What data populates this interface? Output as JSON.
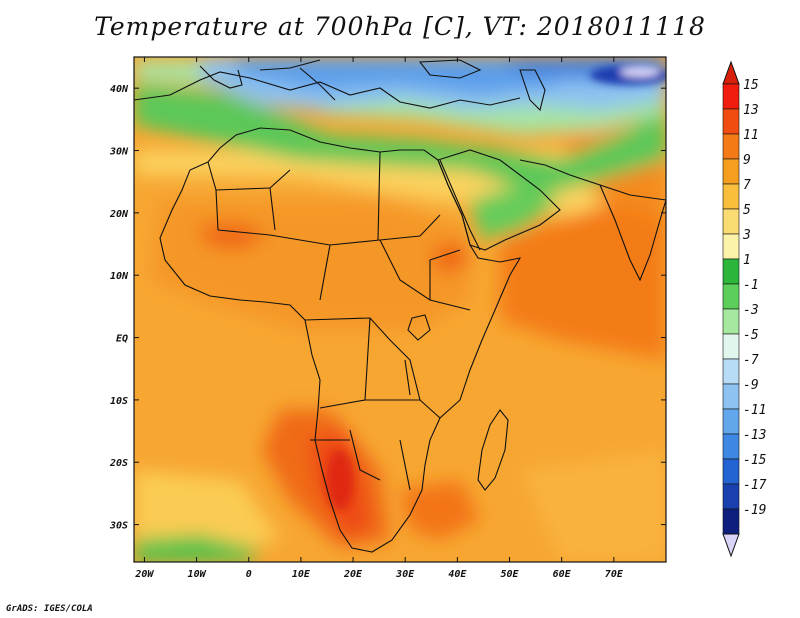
{
  "title": "Temperature at 700hPa [C], VT: 2018011118",
  "credit": "GrADS: IGES/COLA",
  "map": {
    "lon_range": [
      -22,
      80
    ],
    "lat_range": [
      -36,
      45
    ],
    "x_ticks": [
      {
        "lon": -20,
        "label": "20W"
      },
      {
        "lon": -10,
        "label": "10W"
      },
      {
        "lon": 0,
        "label": "0"
      },
      {
        "lon": 10,
        "label": "10E"
      },
      {
        "lon": 20,
        "label": "20E"
      },
      {
        "lon": 30,
        "label": "30E"
      },
      {
        "lon": 40,
        "label": "40E"
      },
      {
        "lon": 50,
        "label": "50E"
      },
      {
        "lon": 60,
        "label": "60E"
      },
      {
        "lon": 70,
        "label": "70E"
      }
    ],
    "y_ticks": [
      {
        "lat": 40,
        "label": "40N"
      },
      {
        "lat": 30,
        "label": "30N"
      },
      {
        "lat": 20,
        "label": "20N"
      },
      {
        "lat": 10,
        "label": "10N"
      },
      {
        "lat": 0,
        "label": "EQ"
      },
      {
        "lat": -10,
        "label": "10S"
      },
      {
        "lat": -20,
        "label": "20S"
      },
      {
        "lat": -30,
        "label": "30S"
      }
    ]
  },
  "colorbar": {
    "labels": [
      "15",
      "13",
      "11",
      "9",
      "7",
      "5",
      "3",
      "1",
      "-1",
      "-3",
      "-5",
      "-7",
      "-9",
      "-11",
      "-13",
      "-15",
      "-17",
      "-19"
    ],
    "colors": [
      "#f01c0e",
      "#f24d10",
      "#f47a16",
      "#f59f1f",
      "#f8be3c",
      "#fbdc72",
      "#fcf3aa",
      "#2bb53a",
      "#5ccf5a",
      "#a6e8a0",
      "#e2f6ee",
      "#b8dcf6",
      "#8dc2f1",
      "#62a6ec",
      "#3e87e3",
      "#2464d2",
      "#1a3fae",
      "#0e1f7e"
    ],
    "top_color": "#d9200b",
    "bottom_color": "#d8d4f8"
  }
}
